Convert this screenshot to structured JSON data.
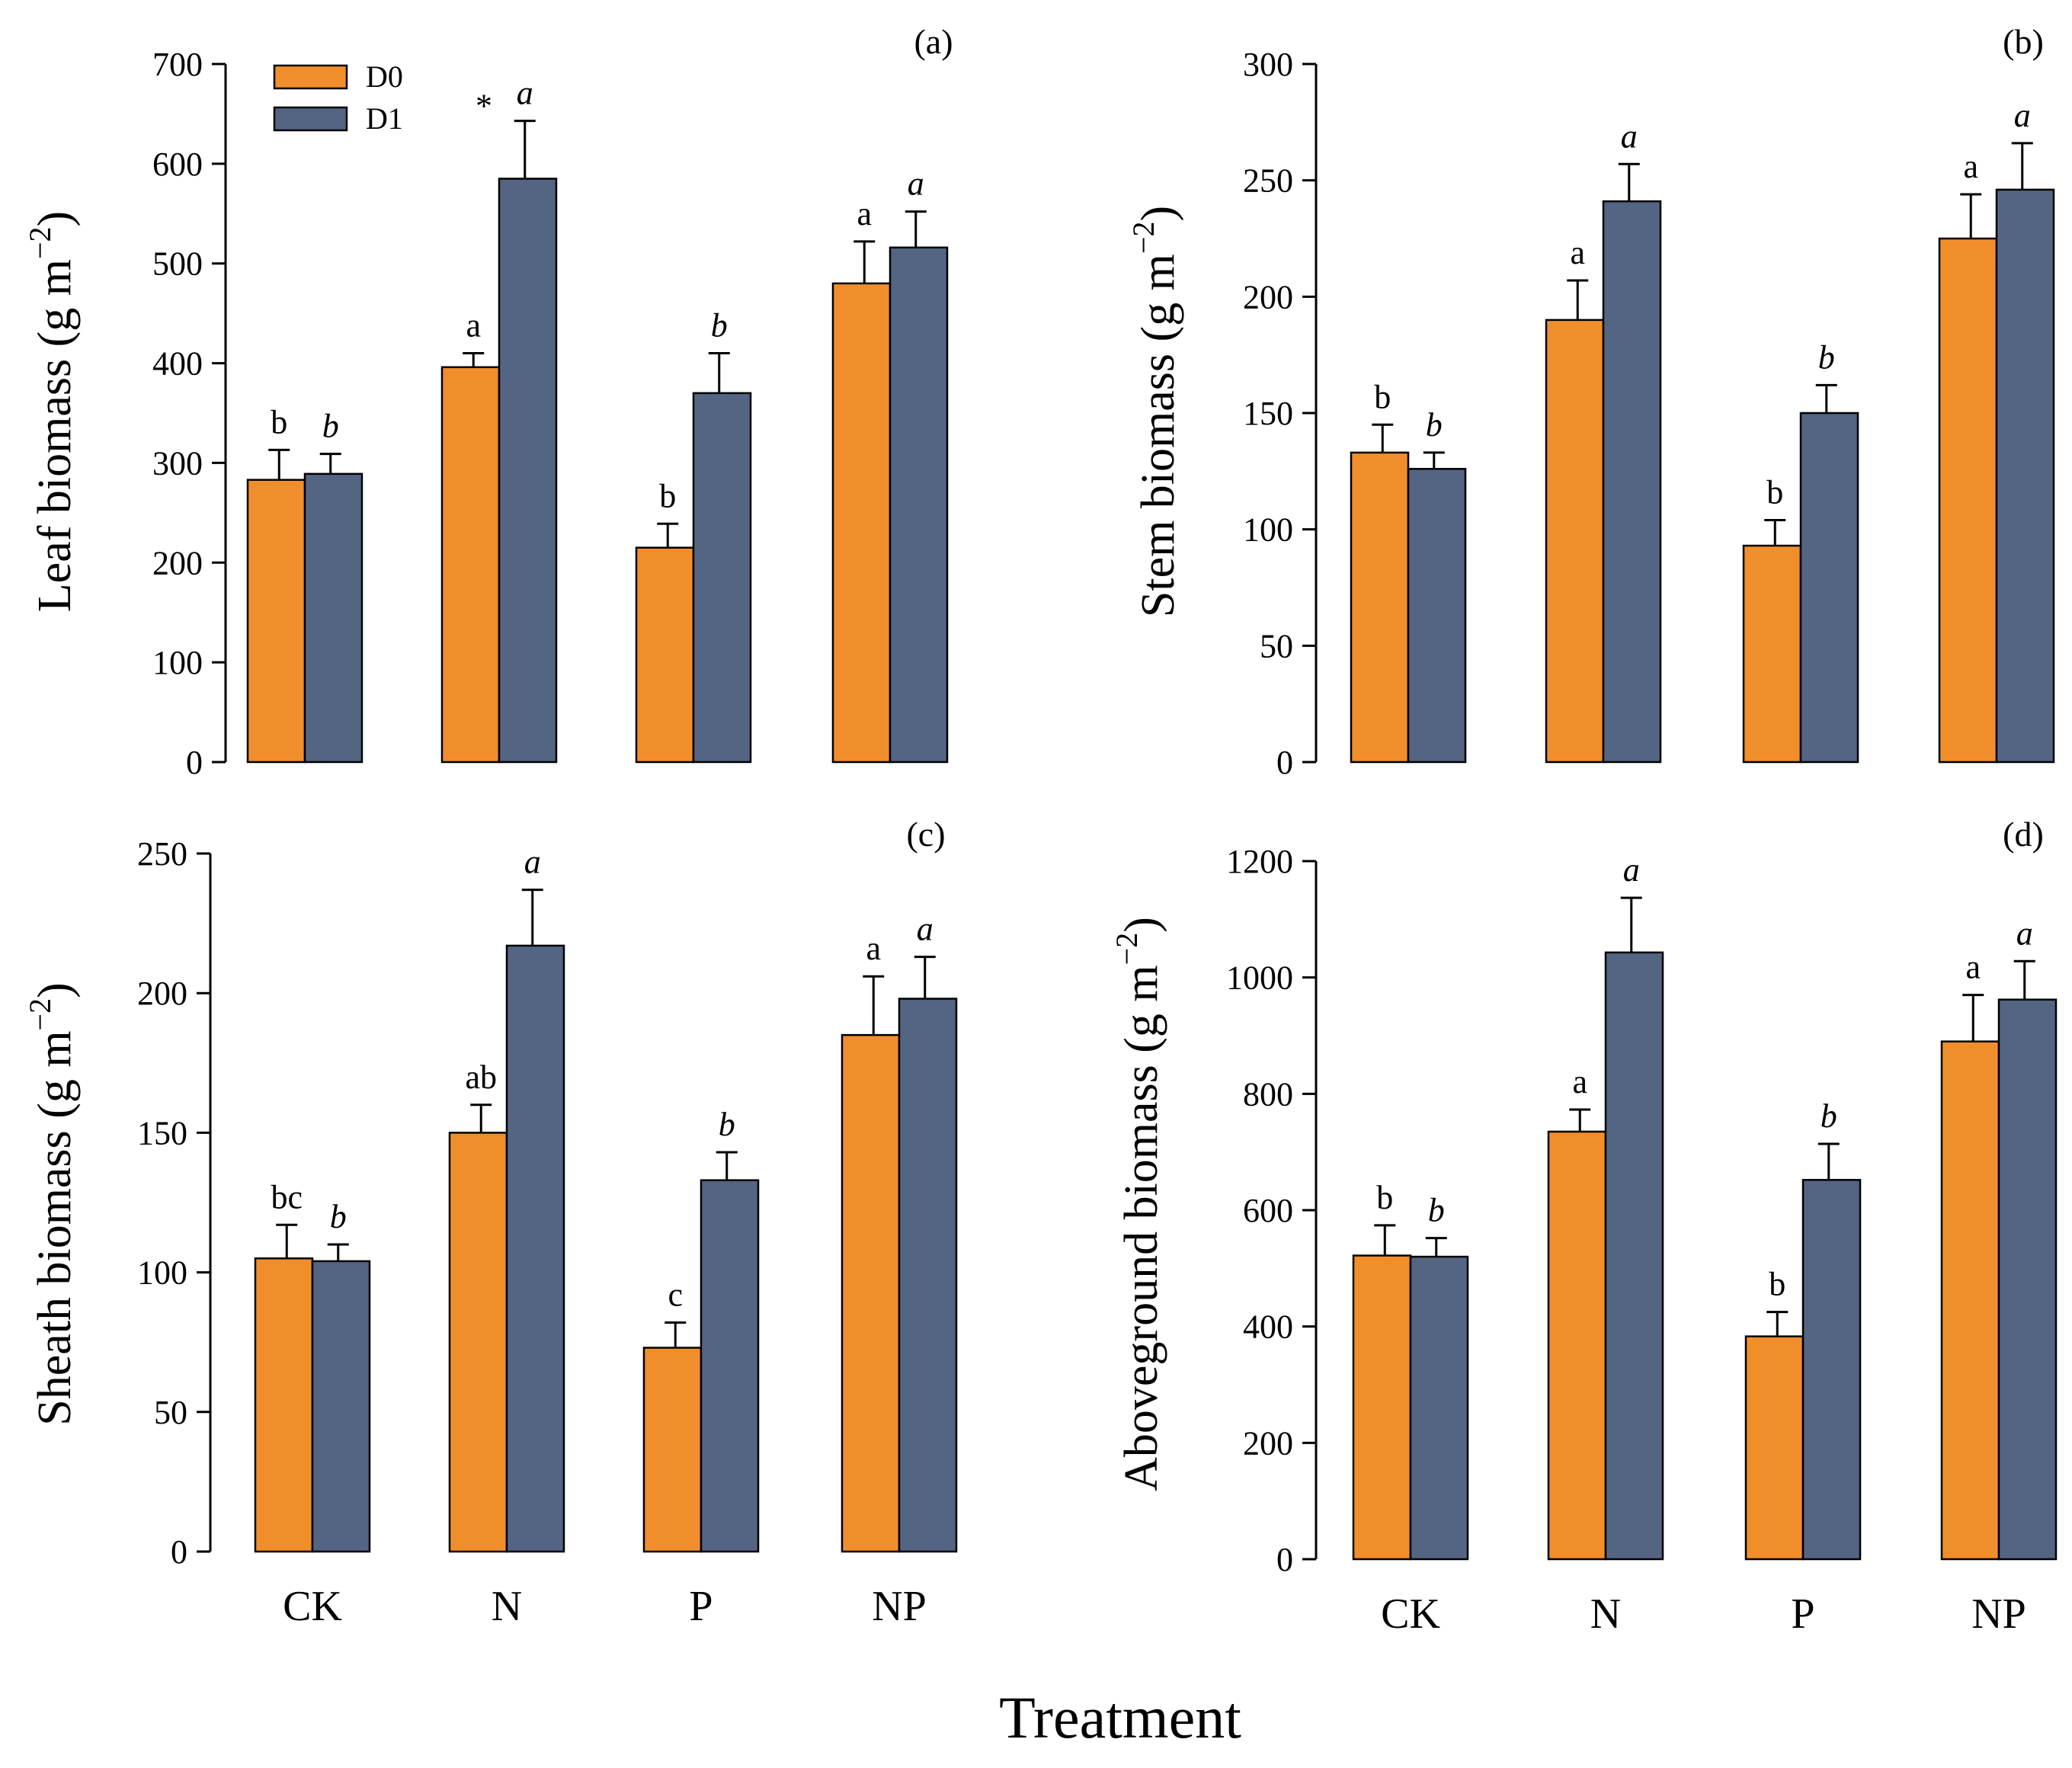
{
  "colors": {
    "D0": "#F18E2C",
    "D1": "#536583",
    "axis": "#000000"
  },
  "x_title": "Treatment",
  "legend": [
    {
      "key": "D0",
      "label": "D0"
    },
    {
      "key": "D1",
      "label": "D1"
    }
  ],
  "chart_data": [
    {
      "type": "bar",
      "panel": "(a)",
      "ylabel_main": "Leaf  biomass (g m",
      "ylabel_sup": "−2",
      "ylabel_close": ")",
      "ylim": [
        0,
        700
      ],
      "yticks": [
        0,
        100,
        200,
        300,
        400,
        500,
        600,
        700
      ],
      "categories": [
        "CK",
        "N",
        "P",
        "NP"
      ],
      "show_categories": false,
      "show_legend": true,
      "series": [
        {
          "name": "D0",
          "values": [
            283,
            396,
            215,
            480
          ],
          "errors": [
            30,
            14,
            24,
            42
          ],
          "labels": [
            "b",
            "a",
            "b",
            "a"
          ],
          "italic": false
        },
        {
          "name": "D1",
          "values": [
            289,
            585,
            370,
            516
          ],
          "errors": [
            20,
            58,
            40,
            36
          ],
          "labels": [
            "b",
            "a",
            "b",
            "a"
          ],
          "italic": true
        }
      ],
      "annotations": [
        {
          "category": "N",
          "series": "D0",
          "text": "*",
          "near": "D1-bar"
        }
      ]
    },
    {
      "type": "bar",
      "panel": "(b)",
      "ylabel_main": "Stem biomass (g m",
      "ylabel_sup": "−2",
      "ylabel_close": ")",
      "ylim": [
        0,
        300
      ],
      "yticks": [
        0,
        50,
        100,
        150,
        200,
        250,
        300
      ],
      "categories": [
        "CK",
        "N",
        "P",
        "NP"
      ],
      "show_categories": false,
      "show_legend": false,
      "series": [
        {
          "name": "D0",
          "values": [
            133,
            190,
            93,
            225
          ],
          "errors": [
            12,
            17,
            11,
            19
          ],
          "labels": [
            "b",
            "a",
            "b",
            "a"
          ],
          "italic": false
        },
        {
          "name": "D1",
          "values": [
            126,
            241,
            150,
            246
          ],
          "errors": [
            7,
            16,
            12,
            20
          ],
          "labels": [
            "b",
            "a",
            "b",
            "a"
          ],
          "italic": true
        }
      ],
      "annotations": []
    },
    {
      "type": "bar",
      "panel": "(c)",
      "ylabel_main": "Sheath biomass (g m",
      "ylabel_sup": "−2",
      "ylabel_close": ")",
      "ylim": [
        0,
        250
      ],
      "yticks": [
        0,
        50,
        100,
        150,
        200,
        250
      ],
      "categories": [
        "CK",
        "N",
        "P",
        "NP"
      ],
      "show_categories": true,
      "show_legend": false,
      "series": [
        {
          "name": "D0",
          "values": [
            105,
            150,
            73,
            185
          ],
          "errors": [
            12,
            10,
            9,
            21
          ],
          "labels": [
            "bc",
            "ab",
            "c",
            "a"
          ],
          "italic": false
        },
        {
          "name": "D1",
          "values": [
            104,
            217,
            133,
            198
          ],
          "errors": [
            6,
            20,
            10,
            15
          ],
          "labels": [
            "b",
            "a",
            "b",
            "a"
          ],
          "italic": true
        }
      ],
      "annotations": []
    },
    {
      "type": "bar",
      "panel": "(d)",
      "ylabel_main": "Aboveground biomass (g m",
      "ylabel_sup": "−2",
      "ylabel_close": ")",
      "ylim": [
        0,
        1200
      ],
      "yticks": [
        0,
        200,
        400,
        600,
        800,
        1000,
        1200
      ],
      "categories": [
        "CK",
        "N",
        "P",
        "NP"
      ],
      "show_categories": true,
      "show_legend": false,
      "series": [
        {
          "name": "D0",
          "values": [
            522,
            735,
            383,
            890
          ],
          "errors": [
            52,
            38,
            42,
            80
          ],
          "labels": [
            "b",
            "a",
            "b",
            "a"
          ],
          "italic": false
        },
        {
          "name": "D1",
          "values": [
            520,
            1043,
            652,
            962
          ],
          "errors": [
            32,
            94,
            62,
            66
          ],
          "labels": [
            "b",
            "a",
            "b",
            "a"
          ],
          "italic": true
        }
      ],
      "annotations": []
    }
  ]
}
